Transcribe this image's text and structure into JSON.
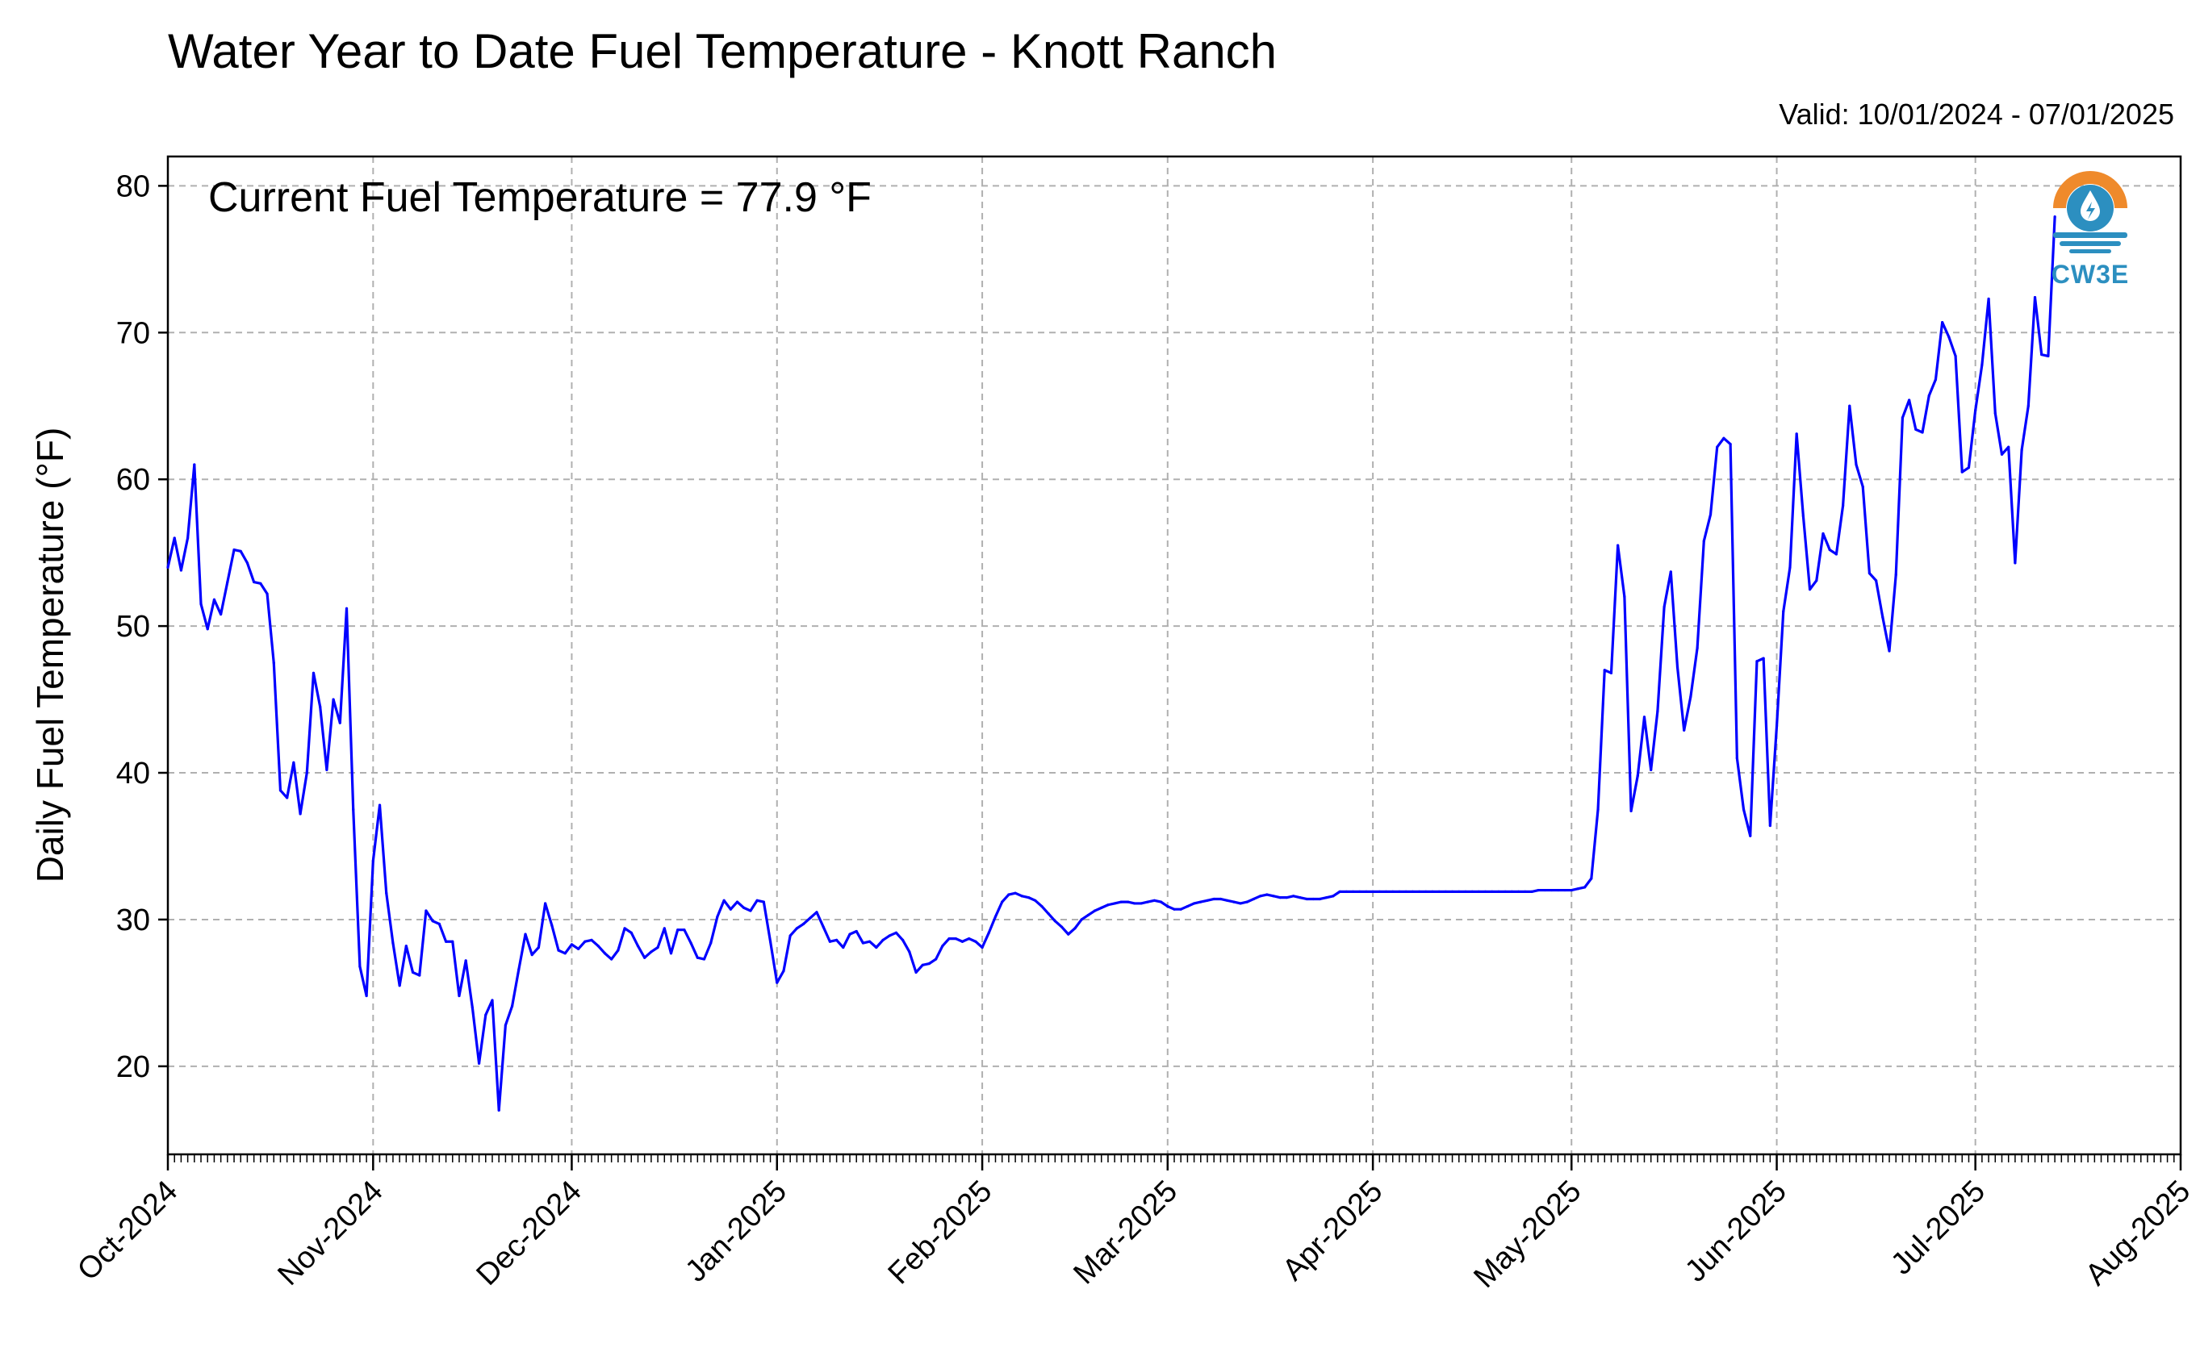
{
  "chart_data": {
    "type": "line",
    "title": "Water Year to Date Fuel Temperature - Knott Ranch",
    "subtitle": "Valid: 10/01/2024 - 07/01/2025",
    "annotation": "Current Fuel Temperature = 77.9 °F",
    "xlabel": "",
    "ylabel": "Daily Fuel Temperature (°F)",
    "x_range": [
      "2024-10-01",
      "2025-08-01"
    ],
    "ylim": [
      14,
      82
    ],
    "y_ticks": [
      20,
      30,
      40,
      50,
      60,
      70,
      80
    ],
    "x_ticks": [
      {
        "date": "2024-10-01",
        "label": "Oct-2024"
      },
      {
        "date": "2024-11-01",
        "label": "Nov-2024"
      },
      {
        "date": "2024-12-01",
        "label": "Dec-2024"
      },
      {
        "date": "2025-01-01",
        "label": "Jan-2025"
      },
      {
        "date": "2025-02-01",
        "label": "Feb-2025"
      },
      {
        "date": "2025-03-01",
        "label": "Mar-2025"
      },
      {
        "date": "2025-04-01",
        "label": "Apr-2025"
      },
      {
        "date": "2025-05-01",
        "label": "May-2025"
      },
      {
        "date": "2025-06-01",
        "label": "Jun-2025"
      },
      {
        "date": "2025-07-01",
        "label": "Jul-2025"
      },
      {
        "date": "2025-08-01",
        "label": "Aug-2025"
      }
    ],
    "grid": true,
    "line_color": "#0000ff",
    "grid_color": "#b0b0b0",
    "series": [
      {
        "x_start": "2024-10-01",
        "x_step_days": 1,
        "values": [
          54.0,
          56.0,
          53.8,
          56.0,
          61.0,
          51.5,
          49.8,
          51.8,
          50.8,
          53.0,
          55.2,
          55.1,
          54.3,
          53.0,
          52.9,
          52.2,
          47.5,
          38.8,
          38.3,
          40.7,
          37.2,
          40.0,
          46.8,
          44.5,
          40.2,
          45.0,
          43.4,
          51.2,
          37.5,
          26.8,
          24.8,
          34.0,
          37.8,
          31.8,
          28.4,
          25.5,
          28.2,
          26.4,
          26.2,
          30.6,
          29.9,
          29.7,
          28.5,
          28.5,
          24.8,
          27.2,
          24.0,
          20.2,
          23.5,
          24.5,
          17.0,
          22.8,
          24.1,
          26.6,
          29.0,
          27.6,
          28.1,
          31.1,
          29.6,
          27.9,
          27.7,
          28.3,
          28.0,
          28.5,
          28.6,
          28.2,
          27.7,
          27.3,
          27.9,
          29.4,
          29.1,
          28.2,
          27.4,
          27.8,
          28.1,
          29.4,
          27.7,
          29.3,
          29.3,
          28.4,
          27.4,
          27.3,
          28.4,
          30.2,
          31.3,
          30.7,
          31.2,
          30.8,
          30.6,
          31.3,
          31.2,
          28.5,
          25.7,
          26.5,
          28.9,
          29.4,
          29.7,
          30.1,
          30.5,
          29.5,
          28.5,
          28.6,
          28.1,
          29.0,
          29.2,
          28.4,
          28.5,
          28.1,
          28.6,
          28.9,
          29.1,
          28.6,
          27.8,
          26.4,
          26.9,
          27.0,
          27.3,
          28.2,
          28.7,
          28.7,
          28.5,
          28.7,
          28.5,
          28.1,
          29.1,
          30.2,
          31.2,
          31.7,
          31.8,
          31.6,
          31.5,
          31.3,
          30.9,
          30.4,
          29.9,
          29.5,
          29.0,
          29.4,
          30.0,
          30.3,
          30.6,
          30.8,
          31.0,
          31.1,
          31.2,
          31.2,
          31.1,
          31.1,
          31.2,
          31.3,
          31.2,
          30.9,
          30.7,
          30.7,
          30.9,
          31.1,
          31.2,
          31.3,
          31.4,
          31.4,
          31.3,
          31.2,
          31.1,
          31.2,
          31.4,
          31.6,
          31.7,
          31.6,
          31.5,
          31.5,
          31.6,
          31.5,
          31.4,
          31.4,
          31.4,
          31.5,
          31.6,
          31.9,
          31.9,
          31.9,
          31.9,
          31.9,
          31.9,
          31.9,
          31.9,
          31.9,
          31.9,
          31.9,
          31.9,
          31.9,
          31.9,
          31.9,
          31.9,
          31.9,
          31.9,
          31.9,
          31.9,
          31.9,
          31.9,
          31.9,
          31.9,
          31.9,
          31.9,
          31.9,
          31.9,
          31.9,
          31.9,
          32.0,
          32.0,
          32.0,
          32.0,
          32.0,
          32.0,
          32.1,
          32.2,
          32.8,
          37.5,
          47.0,
          46.8,
          55.5,
          52.0,
          37.4,
          39.8,
          43.8,
          40.2,
          44.2,
          51.3,
          53.7,
          47.2,
          42.9,
          45.2,
          48.5,
          55.8,
          57.6,
          62.2,
          62.8,
          62.4,
          41.0,
          37.5,
          35.7,
          47.6,
          47.8,
          36.4,
          43.2,
          51.0,
          54.0,
          63.1,
          57.5,
          52.5,
          53.1,
          56.3,
          55.2,
          54.9,
          58.2,
          65.0,
          61.0,
          59.5,
          53.6,
          53.1,
          50.6,
          48.3,
          53.5,
          64.2,
          65.4,
          63.4,
          63.2,
          65.7,
          66.8,
          70.7,
          69.7,
          68.4,
          60.5,
          60.8,
          64.7,
          67.8,
          72.3,
          64.5,
          61.7,
          62.2,
          54.3,
          62.0,
          65.0,
          72.4,
          68.5,
          68.4,
          77.9
        ]
      }
    ]
  },
  "logo": {
    "text": "CW3E",
    "orange": "#ef8a2b",
    "blue": "#2c8fc0"
  }
}
